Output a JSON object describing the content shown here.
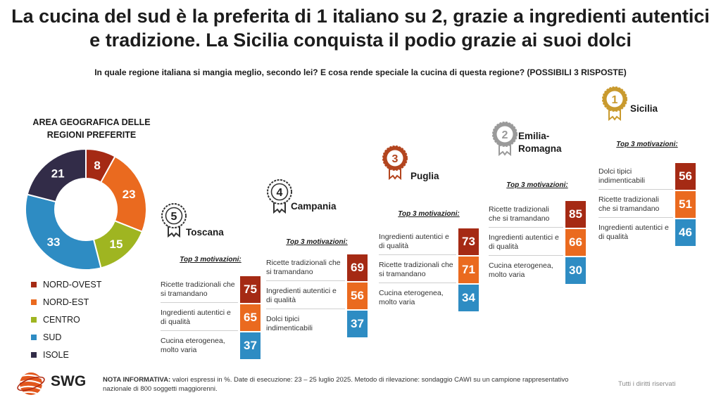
{
  "title": "La cucina del sud è la preferita di 1 italiano su 2, grazie a ingredienti autentici e tradizione. La Sicilia conquista il podio grazie ai suoi dolci",
  "subtitle": "In quale regione italiana si mangia meglio, secondo lei? E cosa rende speciale la cucina di questa regione? (POSSIBILI 3 RISPOSTE)",
  "colors": {
    "nord_ovest": "#a52a14",
    "nord_est": "#ea6a1f",
    "centro": "#9fb521",
    "sud": "#2e8cc3",
    "isole": "#322c48",
    "medal_gold": "#c99a2e",
    "medal_silver": "#9a9a9a",
    "medal_bronze": "#b3451f",
    "medal_plain": "#555555"
  },
  "chart_data": [
    {
      "type": "pie",
      "title": "AREA GEOGRAFICA DELLE REGIONI PREFERITE",
      "categories": [
        "NORD-OVEST",
        "NORD-EST",
        "CENTRO",
        "SUD",
        "ISOLE"
      ],
      "values": [
        8,
        23,
        15,
        33,
        21
      ],
      "colors": [
        "#a52a14",
        "#ea6a1f",
        "#9fb521",
        "#2e8cc3",
        "#322c48"
      ],
      "legend": "bottom-left"
    },
    {
      "type": "table",
      "title": "Top 3 motivazioni:",
      "regions": [
        {
          "rank": "5",
          "name": "Toscana",
          "medal": "plain",
          "motivations": [
            {
              "label": "Ricette tradizionali che si tramandano",
              "value": 75,
              "color": "#a52a14"
            },
            {
              "label": "Ingredienti autentici e di qualità",
              "value": 65,
              "color": "#ea6a1f"
            },
            {
              "label": "Cucina eterogenea, molto varia",
              "value": 37,
              "color": "#2e8cc3"
            }
          ]
        },
        {
          "rank": "4",
          "name": "Campania",
          "medal": "plain",
          "motivations": [
            {
              "label": "Ricette tradizionali che si tramandano",
              "value": 69,
              "color": "#a52a14"
            },
            {
              "label": "Ingredienti autentici e di qualità",
              "value": 56,
              "color": "#ea6a1f"
            },
            {
              "label": "Dolci tipici indimenticabili",
              "value": 37,
              "color": "#2e8cc3"
            }
          ]
        },
        {
          "rank": "3",
          "name": "Puglia",
          "medal": "bronze",
          "motivations": [
            {
              "label": "Ingredienti autentici e di qualità",
              "value": 73,
              "color": "#a52a14"
            },
            {
              "label": "Ricette tradizionali che si tramandano",
              "value": 71,
              "color": "#ea6a1f"
            },
            {
              "label": "Cucina eterogenea, molto varia",
              "value": 34,
              "color": "#2e8cc3"
            }
          ]
        },
        {
          "rank": "2",
          "name": "Emilia-Romagna",
          "medal": "silver",
          "motivations": [
            {
              "label": "Ricette tradizionali che si tramandano",
              "value": 85,
              "color": "#a52a14"
            },
            {
              "label": "Ingredienti autentici e di qualità",
              "value": 66,
              "color": "#ea6a1f"
            },
            {
              "label": "Cucina eterogenea, molto varia",
              "value": 30,
              "color": "#2e8cc3"
            }
          ]
        },
        {
          "rank": "1",
          "name": "Sicilia",
          "medal": "gold",
          "motivations": [
            {
              "label": "Dolci tipici indimenticabili",
              "value": 56,
              "color": "#a52a14"
            },
            {
              "label": "Ricette tradizionali che si tramandano",
              "value": 51,
              "color": "#ea6a1f"
            },
            {
              "label": "Ingredienti autentici e di qualità",
              "value": 46,
              "color": "#2e8cc3"
            }
          ]
        }
      ]
    }
  ],
  "footer": {
    "logo": "SWG",
    "note_label": "NOTA INFORMATIVA:",
    "note_text": " valori espressi in %. Date di esecuzione: 23 – 25 luglio 2025. Metodo di rilevazione: sondaggio CAWI su un campione rappresentativo nazionale di 800 soggetti maggiorenni.",
    "rights": "Tutti i diritti riservati"
  }
}
